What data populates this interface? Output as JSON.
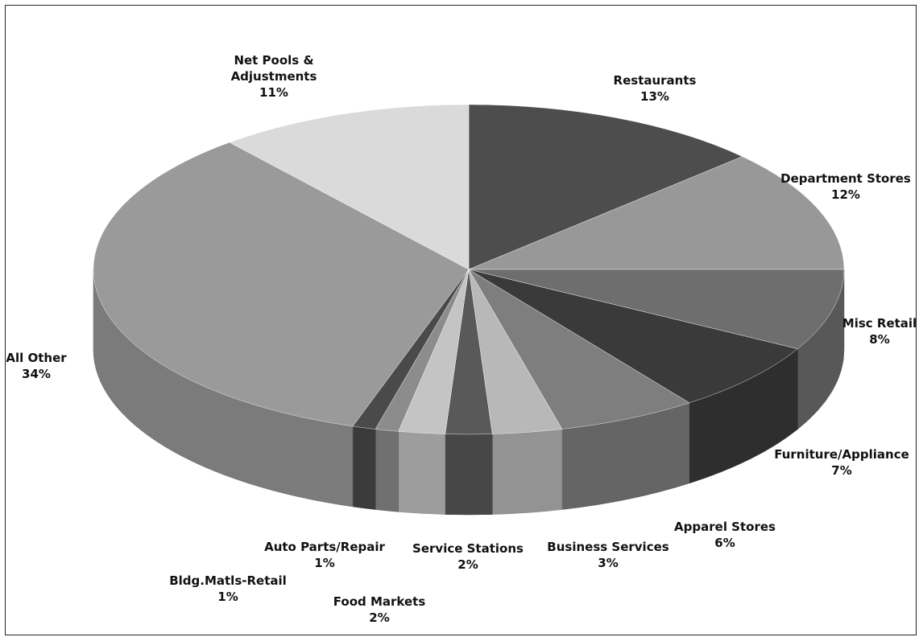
{
  "chart_data": {
    "type": "pie3d",
    "categories": [
      "Restaurants",
      "Department Stores",
      "Misc Retail",
      "Furniture/Appliance",
      "Apparel Stores",
      "Business Services",
      "Service Stations",
      "Food Markets",
      "Auto Parts/Repair",
      "Bldg.Matls-Retail",
      "All Other",
      "Net Pools & Adjustments"
    ],
    "values": [
      13,
      12,
      8,
      7,
      6,
      3,
      2,
      2,
      1,
      1,
      34,
      11
    ],
    "value_labels": [
      "13%",
      "12%",
      "8%",
      "7%",
      "6%",
      "3%",
      "2%",
      "2%",
      "1%",
      "1%",
      "34%",
      "11%"
    ],
    "colors": [
      "#4d4d4d",
      "#989898",
      "#6e6e6e",
      "#3a3a3a",
      "#7e7e7e",
      "#b8b8b8",
      "#595959",
      "#c4c4c4",
      "#8c8c8c",
      "#4a4a4a",
      "#9a9a9a",
      "#dadada"
    ]
  }
}
